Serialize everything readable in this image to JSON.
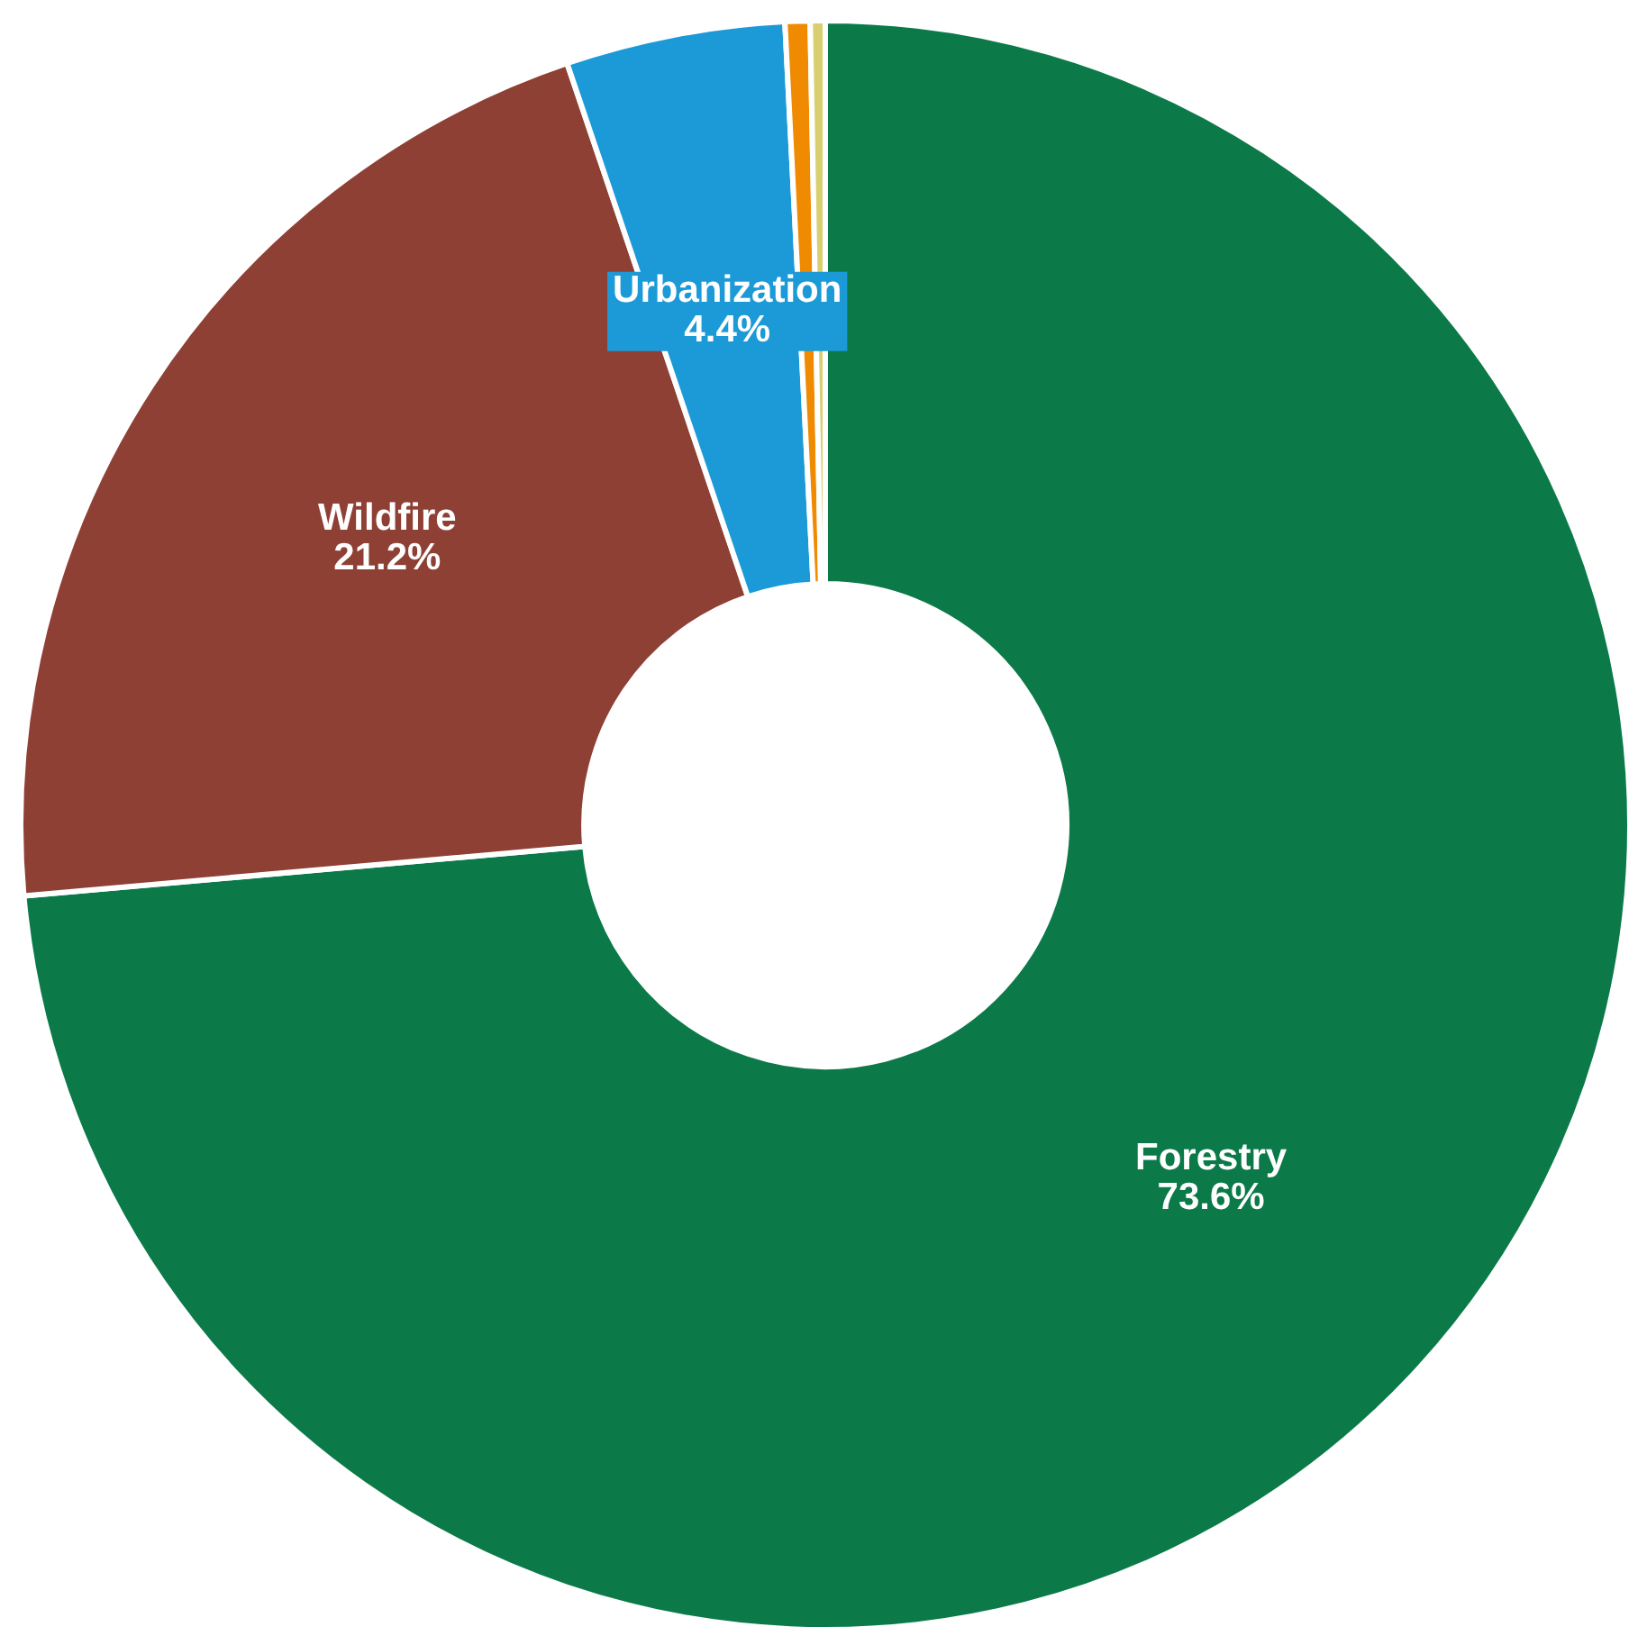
{
  "chart_data": {
    "type": "donut",
    "categories": [
      "Forestry",
      "Wildfire",
      "Urbanization",
      null,
      null
    ],
    "values": [
      73.6,
      21.2,
      4.4,
      0.5,
      0.3
    ],
    "value_labels": [
      "73.6%",
      "21.2%",
      "4.4%",
      null,
      null
    ],
    "colors": [
      "#0b7a48",
      "#8f4035",
      "#1b9ad7",
      "#f08a00",
      "#d8d070"
    ],
    "legend": false
  }
}
